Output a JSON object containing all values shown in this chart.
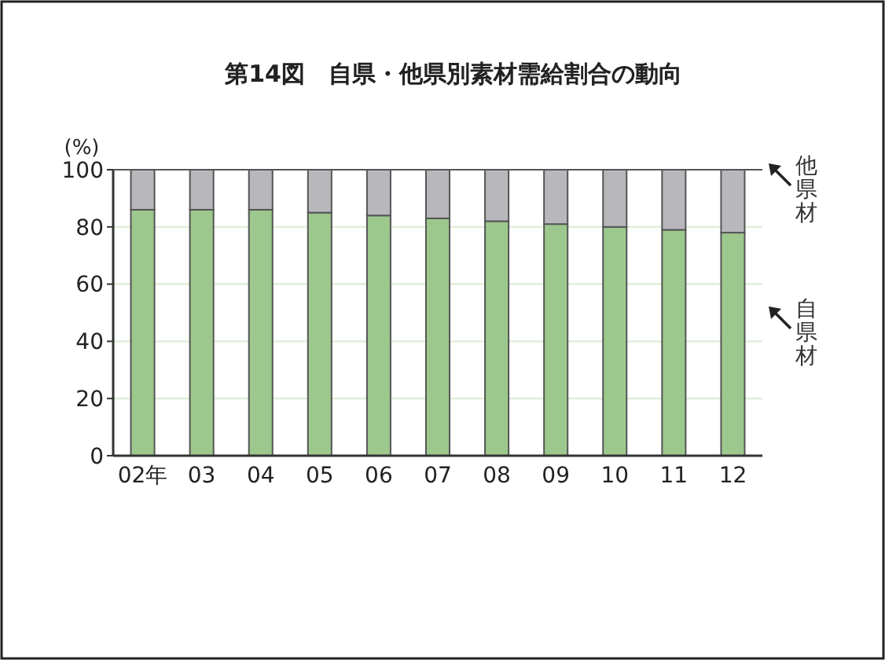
{
  "chart_data": {
    "type": "bar",
    "title": "第14図　自県・他県別素材需給割合の動向",
    "ylabel": "(%)",
    "stacked": true,
    "categories": [
      "02年",
      "03",
      "04",
      "05",
      "06",
      "07",
      "08",
      "09",
      "10",
      "11",
      "12"
    ],
    "series": [
      {
        "name": "自県材",
        "color": "#9dc88d",
        "values": [
          86,
          86,
          86,
          85,
          84,
          83,
          82,
          81,
          80,
          79,
          78
        ]
      },
      {
        "name": "他県材",
        "color": "#b8b8bc",
        "values": [
          14,
          14,
          14,
          15,
          16,
          17,
          18,
          19,
          20,
          21,
          22
        ]
      }
    ],
    "ylim": [
      0,
      100
    ],
    "yticks": [
      0,
      20,
      40,
      60,
      80,
      100
    ],
    "grid": "y",
    "legend": "right"
  }
}
